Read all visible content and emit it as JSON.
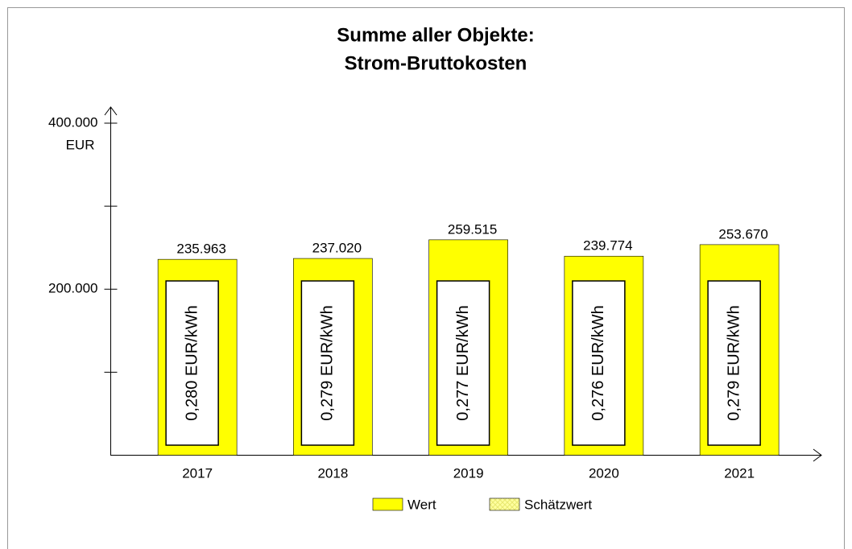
{
  "chart_data": {
    "type": "bar",
    "title": [
      "Summe aller Objekte:",
      "Strom-Bruttokosten"
    ],
    "y_unit": "EUR",
    "categories": [
      "2017",
      "2018",
      "2019",
      "2020",
      "2021"
    ],
    "series": [
      {
        "name": "Wert",
        "color": "#ffff00",
        "values": [
          235963,
          237020,
          259515,
          239774,
          253670
        ],
        "value_labels": [
          "235.963",
          "237.020",
          "259.515",
          "239.774",
          "253.670"
        ]
      },
      {
        "name": "Schätzwert",
        "color": "#ffffa0",
        "values": [
          null,
          null,
          null,
          null,
          null
        ]
      }
    ],
    "bar_annotations": [
      "0,280 EUR/kWh",
      "0,279 EUR/kWh",
      "0,277 EUR/kWh",
      "0,276 EUR/kWh",
      "0,279 EUR/kWh"
    ],
    "ylim": [
      0,
      400000
    ],
    "yticks": [
      {
        "value": 200000,
        "label": "200.000"
      },
      {
        "value": 400000,
        "label": "400.000"
      }
    ],
    "minor_yticks": [
      100000,
      300000
    ]
  }
}
